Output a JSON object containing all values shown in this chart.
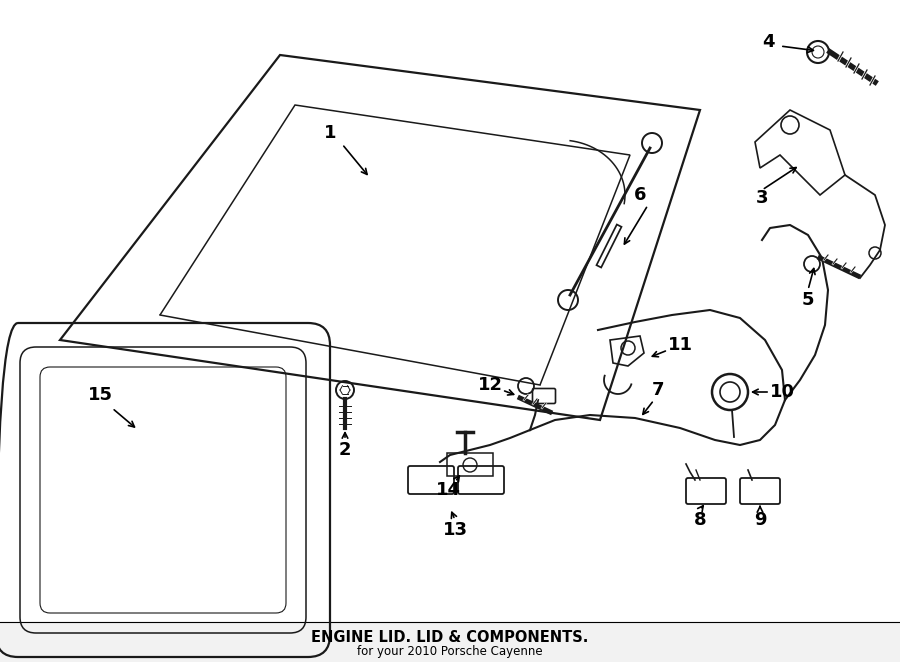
{
  "title": "ENGINE LID. LID & COMPONENTS.",
  "subtitle": "for your 2010 Porsche Cayenne",
  "bg_color": "#ffffff",
  "line_color": "#1a1a1a",
  "fig_w": 9.0,
  "fig_h": 6.62,
  "dpi": 100
}
